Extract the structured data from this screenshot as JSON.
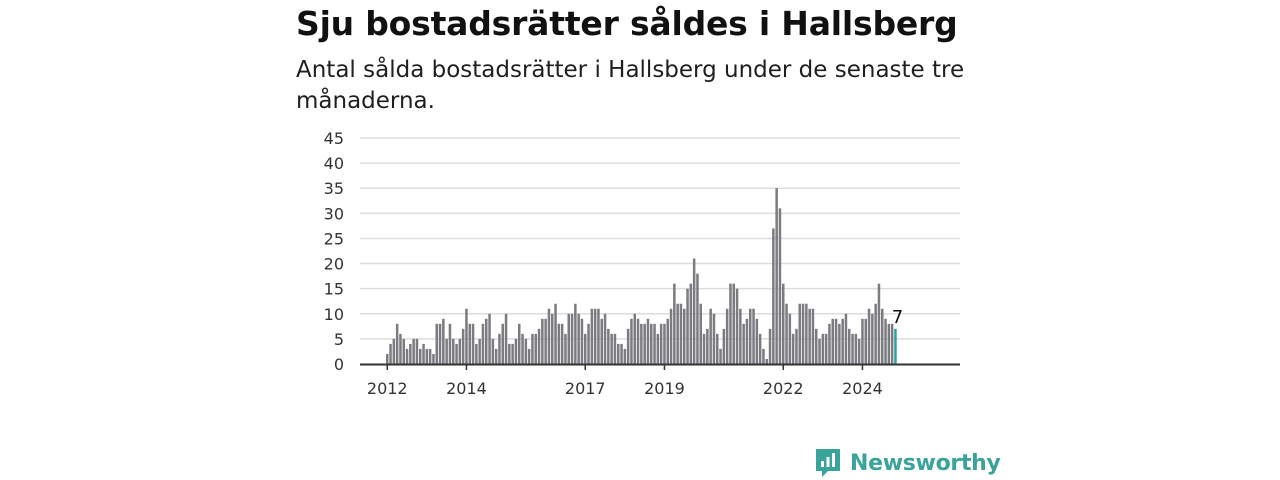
{
  "header": {
    "title": "Sju bostadsrätter såldes i Hallsberg",
    "subtitle": "Antal sålda bostadsrätter i Hallsberg under de senaste tre månaderna."
  },
  "brand": {
    "name": "Newsworthy",
    "icon": "newsworthy-logo-icon"
  },
  "colors": {
    "bar": "#7b7b80",
    "highlight": "#2aa39a",
    "grid": "#dddddd",
    "axis": "#333333",
    "brand": "#3aa39a"
  },
  "chart_data": {
    "type": "bar",
    "title": "",
    "xlabel": "",
    "ylabel": "",
    "ylim": [
      0,
      45
    ],
    "yticks": [
      0,
      5,
      10,
      15,
      20,
      25,
      30,
      35,
      40,
      45
    ],
    "xtick_labels": [
      "2012",
      "2014",
      "2017",
      "2019",
      "2022",
      "2024"
    ],
    "start_month": "2012-01",
    "values": [
      2,
      4,
      5,
      8,
      6,
      5,
      3,
      4,
      5,
      5,
      3,
      4,
      3,
      3,
      2,
      8,
      8,
      9,
      5,
      8,
      5,
      4,
      5,
      7,
      11,
      8,
      8,
      4,
      5,
      8,
      9,
      10,
      5,
      3,
      6,
      8,
      10,
      4,
      4,
      5,
      8,
      6,
      5,
      3,
      6,
      6,
      7,
      9,
      9,
      11,
      10,
      12,
      8,
      8,
      6,
      10,
      10,
      12,
      10,
      9,
      6,
      8,
      11,
      11,
      11,
      9,
      10,
      7,
      6,
      6,
      4,
      4,
      3,
      7,
      9,
      10,
      9,
      8,
      8,
      9,
      8,
      8,
      6,
      8,
      8,
      9,
      11,
      16,
      12,
      12,
      11,
      15,
      16,
      21,
      18,
      12,
      6,
      7,
      11,
      10,
      6,
      3,
      7,
      11,
      16,
      16,
      15,
      11,
      8,
      9,
      11,
      11,
      9,
      6,
      3,
      1,
      7,
      27,
      35,
      31,
      16,
      12,
      10,
      6,
      7,
      12,
      12,
      12,
      11,
      11,
      7,
      5,
      6,
      6,
      8,
      9,
      9,
      8,
      9,
      10,
      7,
      6,
      6,
      5,
      9,
      9,
      11,
      10,
      12,
      16,
      11,
      9,
      8,
      8,
      7
    ],
    "highlight_last": true,
    "data_labels": [
      {
        "value": 7,
        "text": "7"
      }
    ]
  }
}
